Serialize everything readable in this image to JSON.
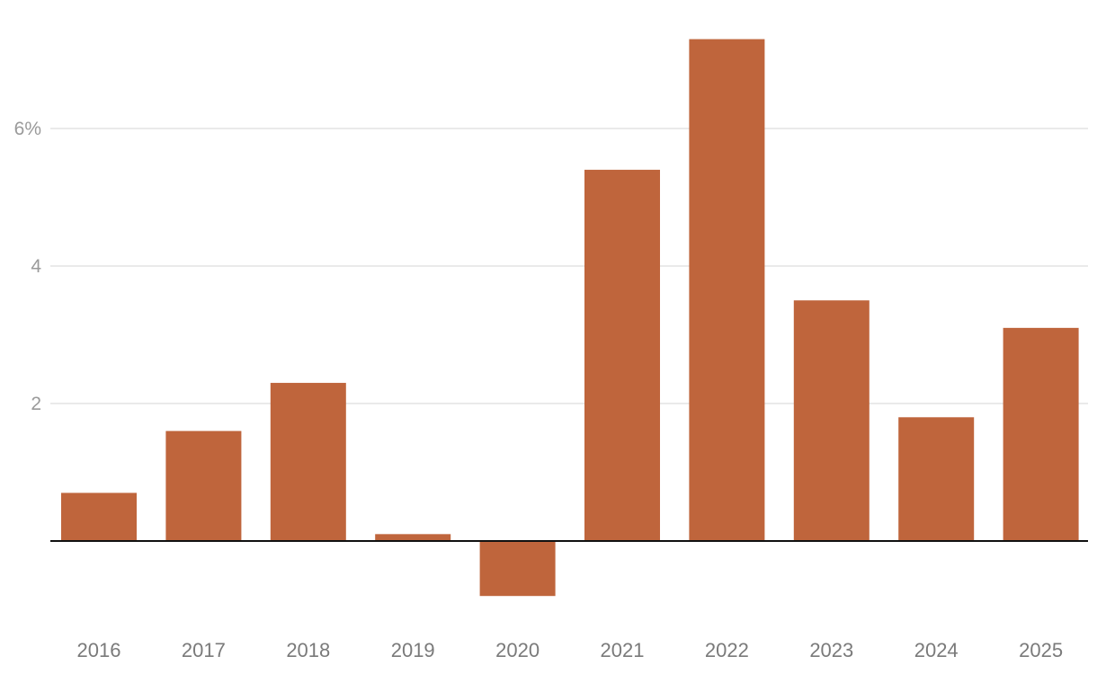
{
  "chart_data": {
    "type": "bar",
    "title": "",
    "xlabel": "",
    "ylabel": "",
    "categories": [
      "2016",
      "2017",
      "2018",
      "2019",
      "2020",
      "2021",
      "2022",
      "2023",
      "2024",
      "2025"
    ],
    "values": [
      0.7,
      1.6,
      2.3,
      0.1,
      -0.8,
      5.4,
      7.3,
      3.5,
      1.8,
      3.1
    ],
    "ylim": [
      -1.2,
      7.7
    ],
    "yticks": [
      {
        "value": 2,
        "label": "2"
      },
      {
        "value": 4,
        "label": "4"
      },
      {
        "value": 6,
        "label": "6%"
      }
    ],
    "bar_color": "#bf653c",
    "grid": true,
    "legend": "none"
  }
}
